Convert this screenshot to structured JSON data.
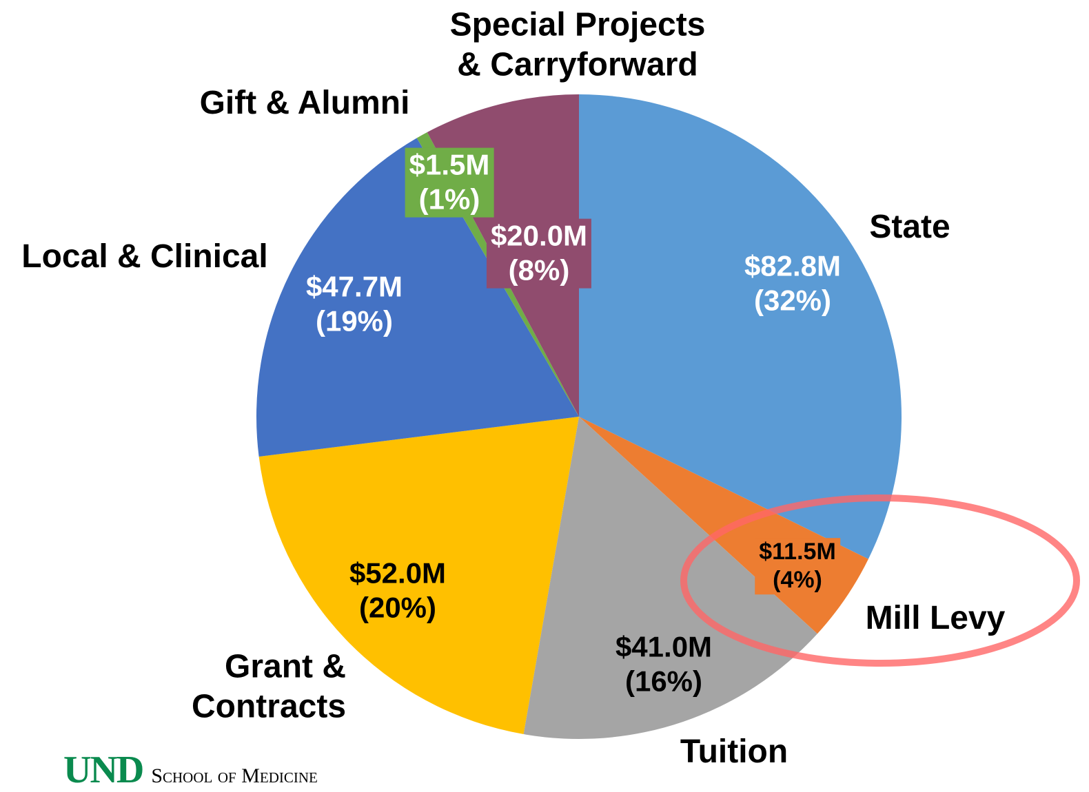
{
  "chart_data": {
    "type": "pie",
    "categories": [
      "State",
      "Mill Levy",
      "Tuition",
      "Grant &\nContracts",
      "Local & Clinical",
      "Gift & Alumni",
      "Special Projects\n& Carryforward"
    ],
    "values": [
      82.8,
      11.5,
      41.0,
      52.0,
      47.7,
      1.5,
      20.0
    ],
    "value_labels": [
      "$82.8M\n(32%)",
      "$11.5M\n(4%)",
      "$41.0M\n(16%)",
      "$52.0M\n(20%)",
      "$47.7M\n(19%)",
      "$1.5M\n(1%)",
      "$20.0M\n(8%)"
    ],
    "colors": [
      "#5b9bd5",
      "#ed7d31",
      "#a5a5a5",
      "#ffc000",
      "#4472c4",
      "#70ad47",
      "#904c6e"
    ]
  },
  "logo": {
    "mark": "UND",
    "text": "School of Medicine"
  }
}
